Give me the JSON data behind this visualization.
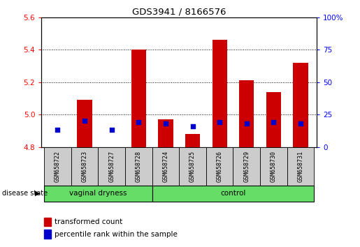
{
  "title": "GDS3941 / 8166576",
  "samples": [
    "GSM658722",
    "GSM658723",
    "GSM658727",
    "GSM658728",
    "GSM658724",
    "GSM658725",
    "GSM658726",
    "GSM658729",
    "GSM658730",
    "GSM658731"
  ],
  "transformed_count": [
    4.8,
    5.09,
    4.8,
    5.4,
    4.97,
    4.88,
    5.46,
    5.21,
    5.14,
    5.32
  ],
  "percentile_rank": [
    13,
    20,
    13,
    19,
    18,
    16,
    19,
    18,
    19,
    18
  ],
  "groups": [
    "vaginal dryness",
    "vaginal dryness",
    "vaginal dryness",
    "vaginal dryness",
    "control",
    "control",
    "control",
    "control",
    "control",
    "control"
  ],
  "ylim_left": [
    4.8,
    5.6
  ],
  "ylim_right": [
    0,
    100
  ],
  "yticks_left": [
    4.8,
    5.0,
    5.2,
    5.4,
    5.6
  ],
  "yticks_right": [
    0,
    25,
    50,
    75,
    100
  ],
  "bar_color": "#CC0000",
  "dot_color": "#0000CC",
  "bar_bottom": 4.8,
  "legend_labels": [
    "transformed count",
    "percentile rank within the sample"
  ],
  "legend_colors": [
    "#CC0000",
    "#0000CC"
  ],
  "disease_state_label": "disease state",
  "group_label_vaginal": "vaginal dryness",
  "group_label_control": "control",
  "green_color": "#66DD66",
  "gray_color": "#CCCCCC"
}
